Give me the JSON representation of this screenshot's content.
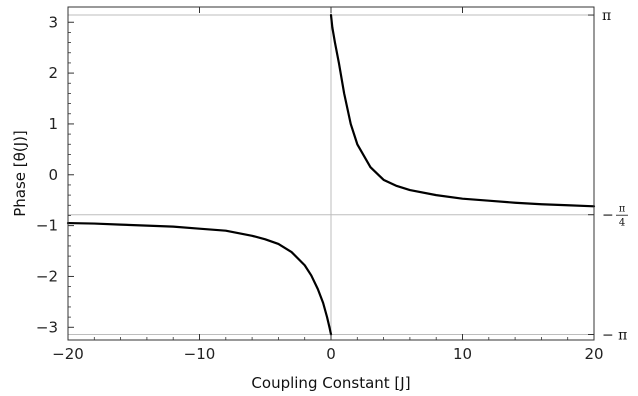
{
  "chart_data": {
    "type": "line",
    "title": "",
    "xlabel": "Coupling Constant [J]",
    "ylabel": "Phase [θ(J)]",
    "xlim": [
      -20,
      20
    ],
    "ylim": [
      -3.25,
      3.3
    ],
    "grid": false,
    "legend": "none",
    "line_color": "#000000",
    "reference_line_color": "#bdbdbd",
    "x_ticks": [
      -20,
      -10,
      0,
      10,
      20
    ],
    "x_tick_labels": [
      "−20",
      "−10",
      "0",
      "10",
      "20"
    ],
    "y_ticks": [
      -3,
      -2,
      -1,
      0,
      1,
      2,
      3
    ],
    "y_tick_labels": [
      "−3",
      "−2",
      "−1",
      "0",
      "1",
      "2",
      "3"
    ],
    "reference_lines": {
      "vertical_x": 0,
      "horizontal_y": [
        3.14159,
        -0.785398,
        -3.14159
      ]
    },
    "right_axis_labels": [
      {
        "value": 3.14159,
        "sign": "",
        "symbol": "π",
        "denominator": ""
      },
      {
        "value": -0.785398,
        "sign": "−",
        "symbol": "π",
        "denominator": "4"
      },
      {
        "value": -3.14159,
        "sign": "−",
        "symbol": "π",
        "denominator": ""
      }
    ],
    "series": [
      {
        "segment": "negative-J",
        "x": [
          -20,
          -18,
          -16,
          -14,
          -12,
          -10,
          -8,
          -6,
          -5,
          -4,
          -3,
          -2,
          -1.5,
          -1,
          -0.6,
          -0.3,
          -0.1,
          0
        ],
        "y": [
          -0.95,
          -0.96,
          -0.98,
          -1.0,
          -1.02,
          -1.06,
          -1.1,
          -1.2,
          -1.27,
          -1.36,
          -1.52,
          -1.78,
          -1.98,
          -2.25,
          -2.52,
          -2.8,
          -3.02,
          -3.14
        ]
      },
      {
        "segment": "positive-J",
        "x": [
          0,
          0.1,
          0.3,
          0.6,
          1,
          1.5,
          2,
          3,
          4,
          5,
          6,
          8,
          10,
          12,
          14,
          16,
          18,
          20
        ],
        "y": [
          3.14,
          2.9,
          2.6,
          2.2,
          1.6,
          1.0,
          0.6,
          0.15,
          -0.1,
          -0.22,
          -0.3,
          -0.4,
          -0.47,
          -0.51,
          -0.55,
          -0.58,
          -0.6,
          -0.62
        ]
      }
    ]
  }
}
